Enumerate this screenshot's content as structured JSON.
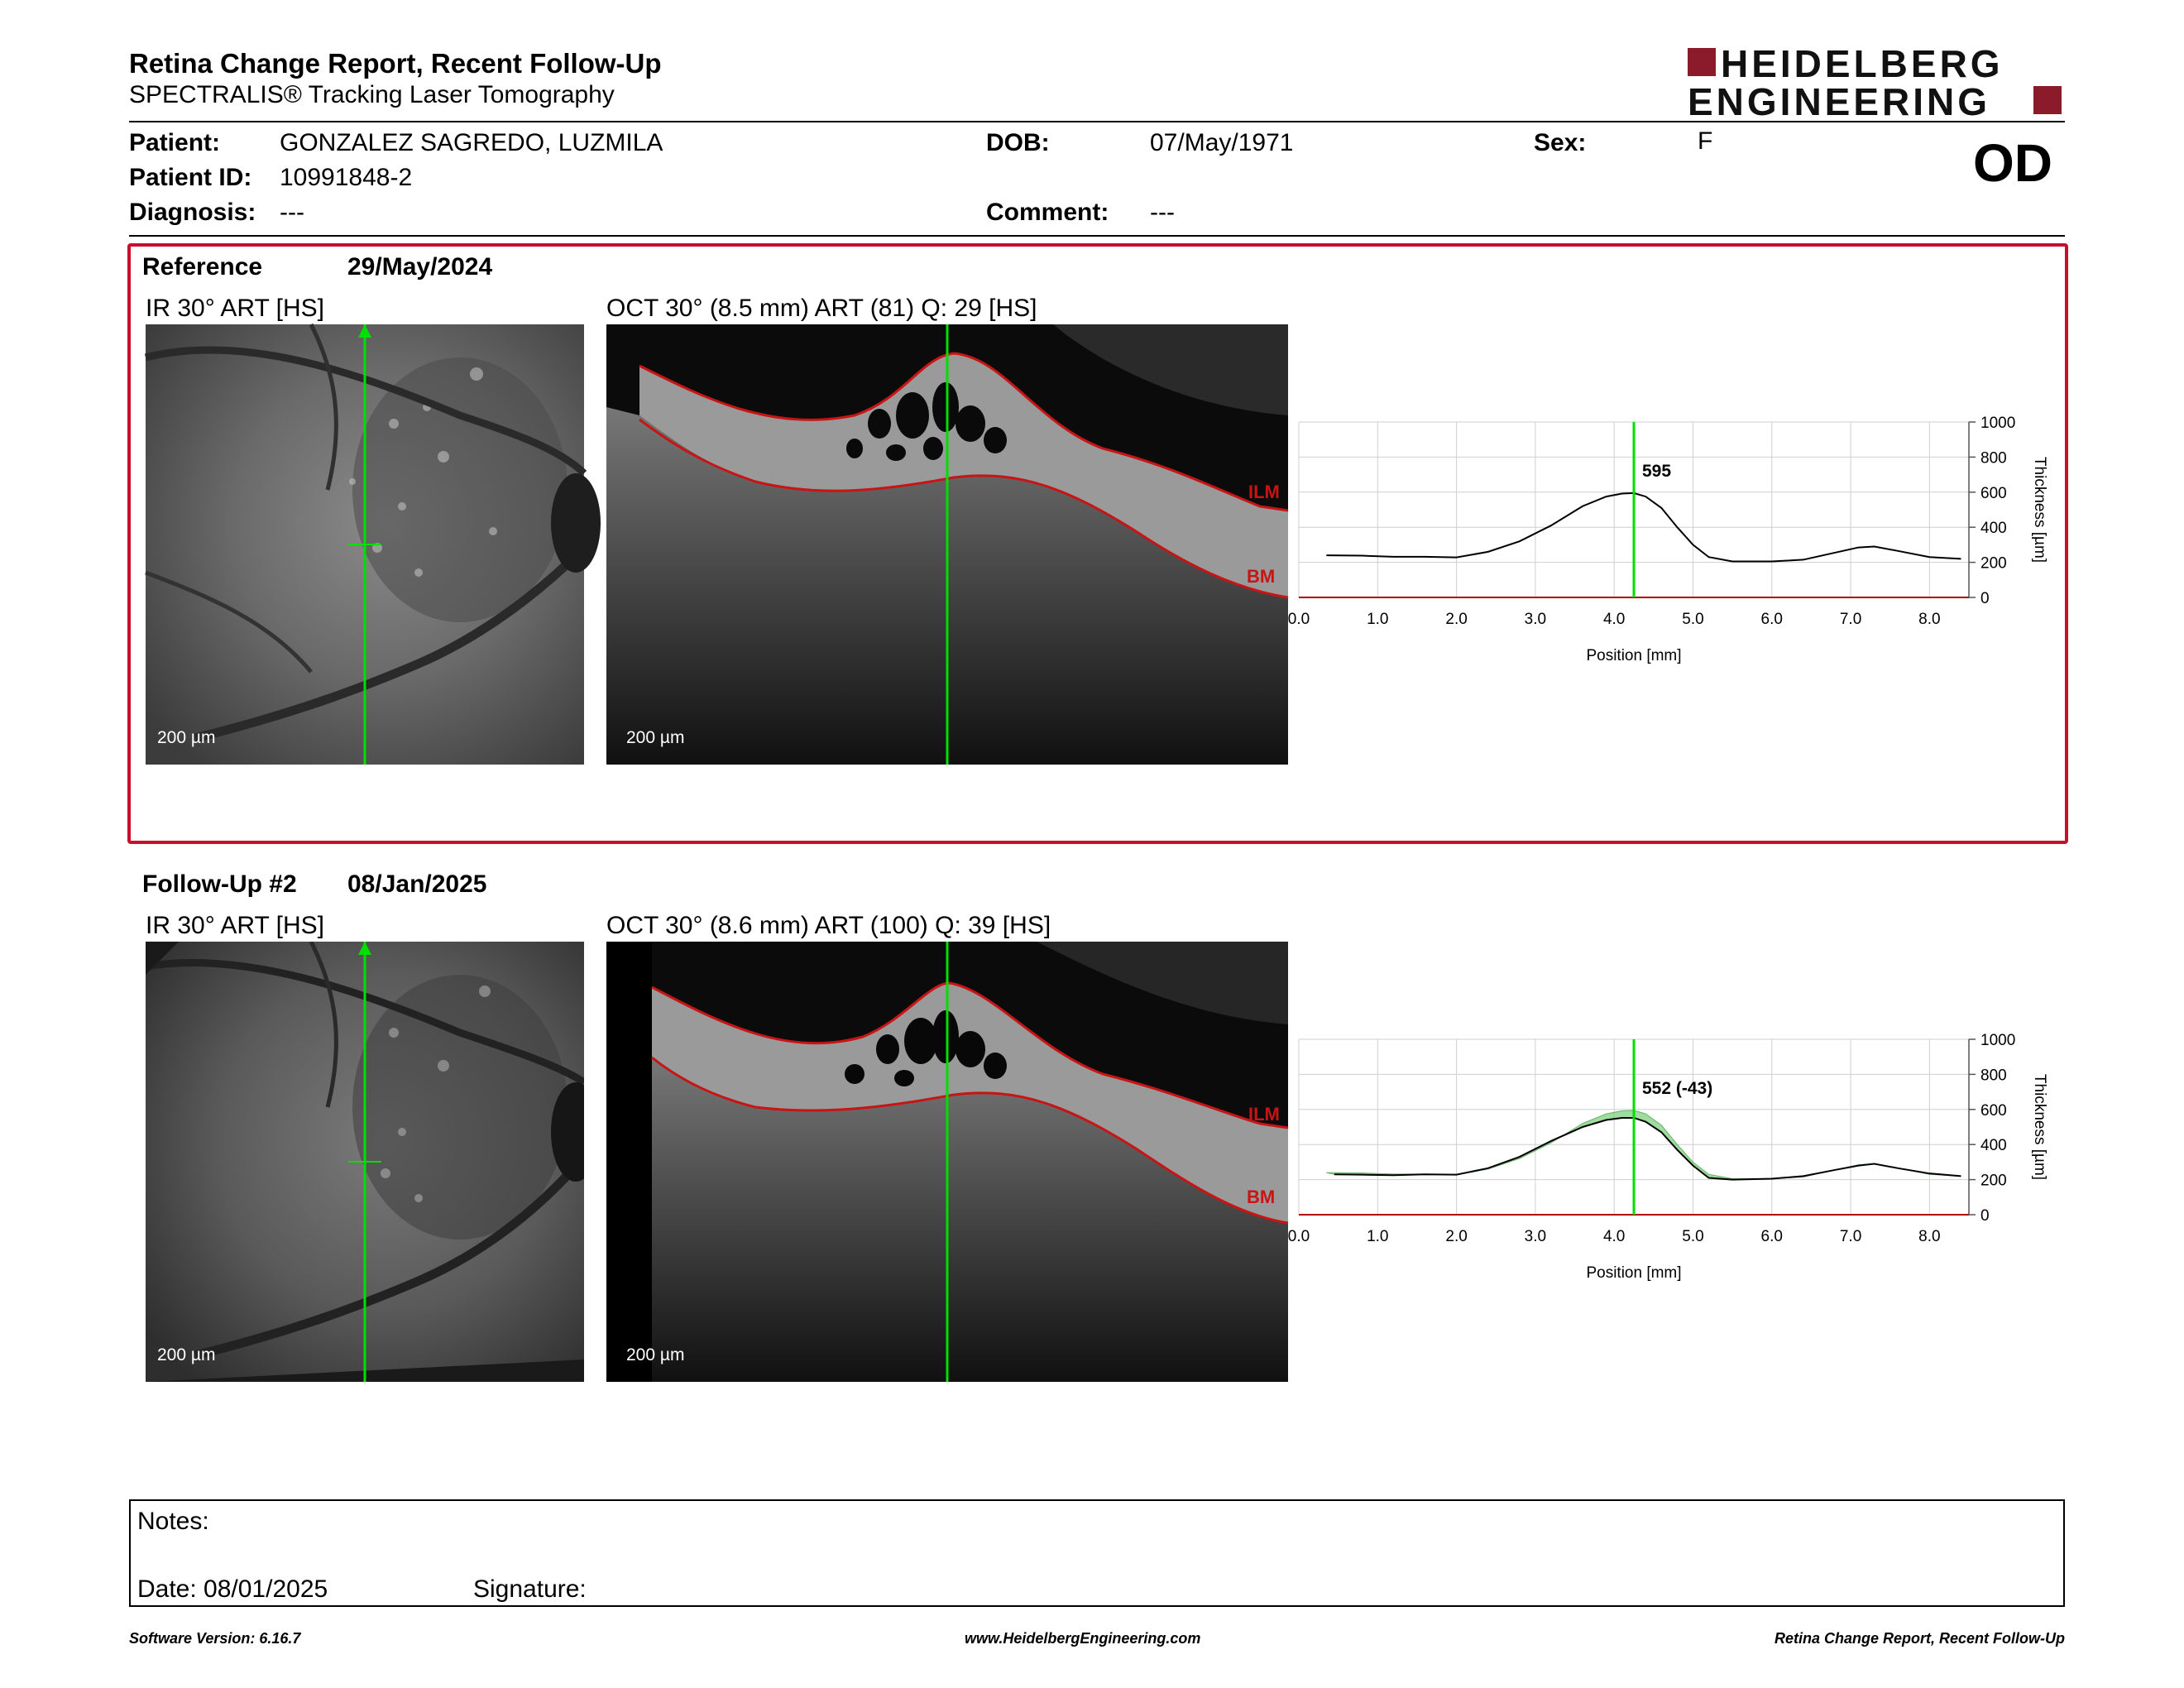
{
  "header": {
    "title": "Retina Change Report, Recent Follow-Up",
    "subtitle": "SPECTRALIS® Tracking Laser Tomography",
    "logo_line1": "HEIDELBERG",
    "logo_line2": "ENGINEERING",
    "eye": "OD"
  },
  "patient": {
    "patient_label": "Patient:",
    "patient_value": "GONZALEZ SAGREDO, LUZMILA",
    "id_label": "Patient ID:",
    "id_value": "10991848-2",
    "diagnosis_label": "Diagnosis:",
    "diagnosis_value": "---",
    "dob_label": "DOB:",
    "dob_value": "07/May/1971",
    "comment_label": "Comment:",
    "comment_value": "---",
    "sex_label": "Sex:",
    "sex_value": "F"
  },
  "reference": {
    "label": "Reference",
    "date": "29/May/2024",
    "ir_caption": "IR 30° ART [HS]",
    "oct_caption": "OCT 30° (8.5 mm) ART (81) Q: 29 [HS]",
    "ir_scale": "200 µm",
    "oct_scale": "200 µm",
    "ilm": "ILM",
    "bm": "BM"
  },
  "followup": {
    "label": "Follow-Up #2",
    "date": "08/Jan/2025",
    "ir_caption": "IR 30° ART [HS]",
    "oct_caption": "OCT 30° (8.6 mm) ART (100) Q: 39 [HS]",
    "ir_scale": "200 µm",
    "oct_scale": "200 µm",
    "ilm": "ILM",
    "bm": "BM"
  },
  "notes": {
    "notes_label": "Notes:",
    "date_label": "Date: 08/01/2025",
    "signature_label": "Signature:"
  },
  "footer": {
    "left": "Software Version: 6.16.7",
    "center": "www.HeidelbergEngineering.com",
    "right": "Retina Change Report, Recent Follow-Up"
  },
  "colors": {
    "reference_frame": "#c8102e",
    "marker": "#00e000",
    "segmentation": "#c81414"
  },
  "chart_data": [
    {
      "type": "line",
      "xlabel": "Position [mm]",
      "ylabel": "Thickness [µm]",
      "xlim": [
        0,
        8.5
      ],
      "ylim": [
        0,
        1000
      ],
      "xticks": [
        "0.0",
        "1.0",
        "2.0",
        "3.0",
        "4.0",
        "5.0",
        "6.0",
        "7.0",
        "8.0"
      ],
      "yticks": [
        "0",
        "200",
        "400",
        "600",
        "800",
        "1000"
      ],
      "grid": true,
      "marker_x": 4.25,
      "marker_label": "595",
      "series": [
        {
          "x": [
            0.35,
            0.8,
            1.2,
            1.6,
            2.0,
            2.4,
            2.8,
            3.2,
            3.6,
            3.9,
            4.1,
            4.25,
            4.4,
            4.6,
            4.8,
            5.0,
            5.2,
            5.5,
            6.0,
            6.4,
            6.8,
            7.1,
            7.3,
            7.6,
            8.0,
            8.4
          ],
          "y": [
            240,
            238,
            232,
            232,
            228,
            260,
            320,
            410,
            520,
            575,
            592,
            595,
            575,
            510,
            400,
            300,
            230,
            205,
            205,
            215,
            255,
            285,
            290,
            265,
            230,
            220
          ]
        }
      ]
    },
    {
      "type": "line",
      "xlabel": "Position [mm]",
      "ylabel": "Thickness [µm]",
      "xlim": [
        0,
        8.5
      ],
      "ylim": [
        0,
        1000
      ],
      "xticks": [
        "0.0",
        "1.0",
        "2.0",
        "3.0",
        "4.0",
        "5.0",
        "6.0",
        "7.0",
        "8.0"
      ],
      "yticks": [
        "0",
        "200",
        "400",
        "600",
        "800",
        "1000"
      ],
      "grid": true,
      "marker_x": 4.25,
      "marker_label": "552 (-43)",
      "series": [
        {
          "x": [
            0.45,
            0.8,
            1.2,
            1.6,
            2.0,
            2.4,
            2.8,
            3.2,
            3.6,
            3.9,
            4.1,
            4.25,
            4.4,
            4.6,
            4.8,
            5.0,
            5.2,
            5.5,
            6.0,
            6.4,
            6.8,
            7.1,
            7.3,
            7.6,
            8.0,
            8.4
          ],
          "y": [
            230,
            228,
            225,
            230,
            228,
            265,
            330,
            420,
            500,
            540,
            552,
            552,
            530,
            470,
            370,
            280,
            210,
            200,
            205,
            220,
            255,
            280,
            290,
            265,
            235,
            220
          ]
        }
      ]
    }
  ]
}
